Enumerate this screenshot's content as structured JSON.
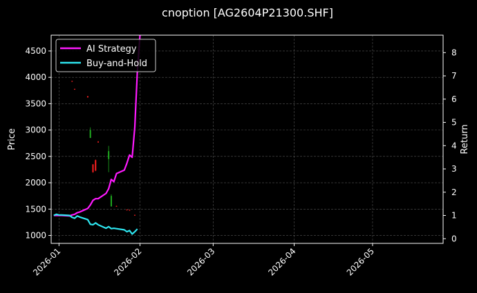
{
  "chart_data": {
    "type": "line",
    "title": "cnoption [AG2604P21300.SHF]",
    "ylabel_left": "Price",
    "ylabel_right": "Return",
    "xlim": [
      "2025-12-29",
      "2026-05-28"
    ],
    "ylim_left": [
      850,
      4800
    ],
    "ylim_right": [
      -0.2,
      8.75
    ],
    "x_ticks": [
      "2026-01",
      "2026-02",
      "2026-03",
      "2026-04",
      "2026-05"
    ],
    "y_ticks_left": [
      1000,
      1500,
      2000,
      2500,
      3000,
      3500,
      4000,
      4500
    ],
    "y_ticks_right": [
      0,
      1,
      2,
      3,
      4,
      5,
      6,
      7,
      8
    ],
    "grid": true,
    "legend_position": "top-left",
    "colors": {
      "background": "#000000",
      "ai_strategy": "#ff1aff",
      "buy_and_hold": "#2ee6f0",
      "candle_up": "#1faa1f",
      "candle_down": "#ff2020",
      "grid": "#555555",
      "axis": "#ffffff"
    },
    "series": [
      {
        "name": "AI Strategy",
        "axis": "right",
        "points": [
          [
            "2025-12-30",
            1.0
          ],
          [
            "2025-12-31",
            1.0
          ],
          [
            "2026-01-01",
            1.0
          ],
          [
            "2026-01-02",
            1.0
          ],
          [
            "2026-01-05",
            0.98
          ],
          [
            "2026-01-06",
            1.02
          ],
          [
            "2026-01-07",
            1.05
          ],
          [
            "2026-01-08",
            1.12
          ],
          [
            "2026-01-09",
            1.15
          ],
          [
            "2026-01-12",
            1.3
          ],
          [
            "2026-01-13",
            1.45
          ],
          [
            "2026-01-14",
            1.65
          ],
          [
            "2026-01-15",
            1.72
          ],
          [
            "2026-01-16",
            1.72
          ],
          [
            "2026-01-19",
            1.95
          ],
          [
            "2026-01-20",
            2.15
          ],
          [
            "2026-01-21",
            2.55
          ],
          [
            "2026-01-22",
            2.45
          ],
          [
            "2026-01-23",
            2.8
          ],
          [
            "2026-01-26",
            2.95
          ],
          [
            "2026-01-27",
            3.25
          ],
          [
            "2026-01-28",
            3.6
          ],
          [
            "2026-01-29",
            3.5
          ],
          [
            "2026-01-30",
            4.8
          ],
          [
            "2026-01-31",
            7.2
          ],
          [
            "2026-02-01",
            8.75
          ]
        ]
      },
      {
        "name": "Buy-and-Hold",
        "axis": "right",
        "points": [
          [
            "2025-12-30",
            1.0
          ],
          [
            "2025-12-31",
            1.05
          ],
          [
            "2026-01-01",
            1.02
          ],
          [
            "2026-01-02",
            1.02
          ],
          [
            "2026-01-05",
            1.0
          ],
          [
            "2026-01-06",
            0.92
          ],
          [
            "2026-01-07",
            0.88
          ],
          [
            "2026-01-08",
            0.98
          ],
          [
            "2026-01-09",
            0.93
          ],
          [
            "2026-01-12",
            0.82
          ],
          [
            "2026-01-13",
            0.62
          ],
          [
            "2026-01-14",
            0.6
          ],
          [
            "2026-01-15",
            0.68
          ],
          [
            "2026-01-16",
            0.6
          ],
          [
            "2026-01-19",
            0.45
          ],
          [
            "2026-01-20",
            0.52
          ],
          [
            "2026-01-21",
            0.43
          ],
          [
            "2026-01-22",
            0.45
          ],
          [
            "2026-01-23",
            0.43
          ],
          [
            "2026-01-26",
            0.38
          ],
          [
            "2026-01-27",
            0.3
          ],
          [
            "2026-01-28",
            0.35
          ],
          [
            "2026-01-29",
            0.2
          ],
          [
            "2026-01-30",
            0.3
          ],
          [
            "2026-01-31",
            0.42
          ]
        ]
      }
    ],
    "candles": [
      {
        "date": "2026-01-06",
        "open": 3930,
        "close": 3920,
        "high": 3935,
        "low": 3915,
        "direction": "down"
      },
      {
        "date": "2026-01-07",
        "open": 3780,
        "close": 3770,
        "high": 3785,
        "low": 3765,
        "direction": "down"
      },
      {
        "date": "2026-01-12",
        "open": 3640,
        "close": 3620,
        "high": 3645,
        "low": 3615,
        "direction": "down"
      },
      {
        "date": "2026-01-13",
        "open": 2850,
        "close": 3000,
        "high": 3050,
        "low": 2850,
        "direction": "up"
      },
      {
        "date": "2026-01-14",
        "open": 2350,
        "close": 2200,
        "high": 2350,
        "low": 2190,
        "direction": "down"
      },
      {
        "date": "2026-01-15",
        "open": 2430,
        "close": 2230,
        "high": 2440,
        "low": 2220,
        "direction": "down"
      },
      {
        "date": "2026-01-16",
        "open": 2780,
        "close": 2765,
        "high": 2790,
        "low": 2760,
        "direction": "down"
      },
      {
        "date": "2026-01-20",
        "open": 2450,
        "close": 2600,
        "high": 2700,
        "low": 2200,
        "direction": "up"
      },
      {
        "date": "2026-01-21",
        "open": 1550,
        "close": 1750,
        "high": 1780,
        "low": 1550,
        "direction": "up"
      },
      {
        "date": "2026-01-23",
        "open": 1560,
        "close": 1550,
        "high": 1565,
        "low": 1545,
        "direction": "down"
      },
      {
        "date": "2026-01-27",
        "open": 1490,
        "close": 1480,
        "high": 1495,
        "low": 1475,
        "direction": "down"
      },
      {
        "date": "2026-01-28",
        "open": 1485,
        "close": 1475,
        "high": 1490,
        "low": 1470,
        "direction": "down"
      },
      {
        "date": "2026-01-30",
        "open": 1390,
        "close": 1380,
        "high": 1395,
        "low": 1375,
        "direction": "down"
      }
    ]
  }
}
